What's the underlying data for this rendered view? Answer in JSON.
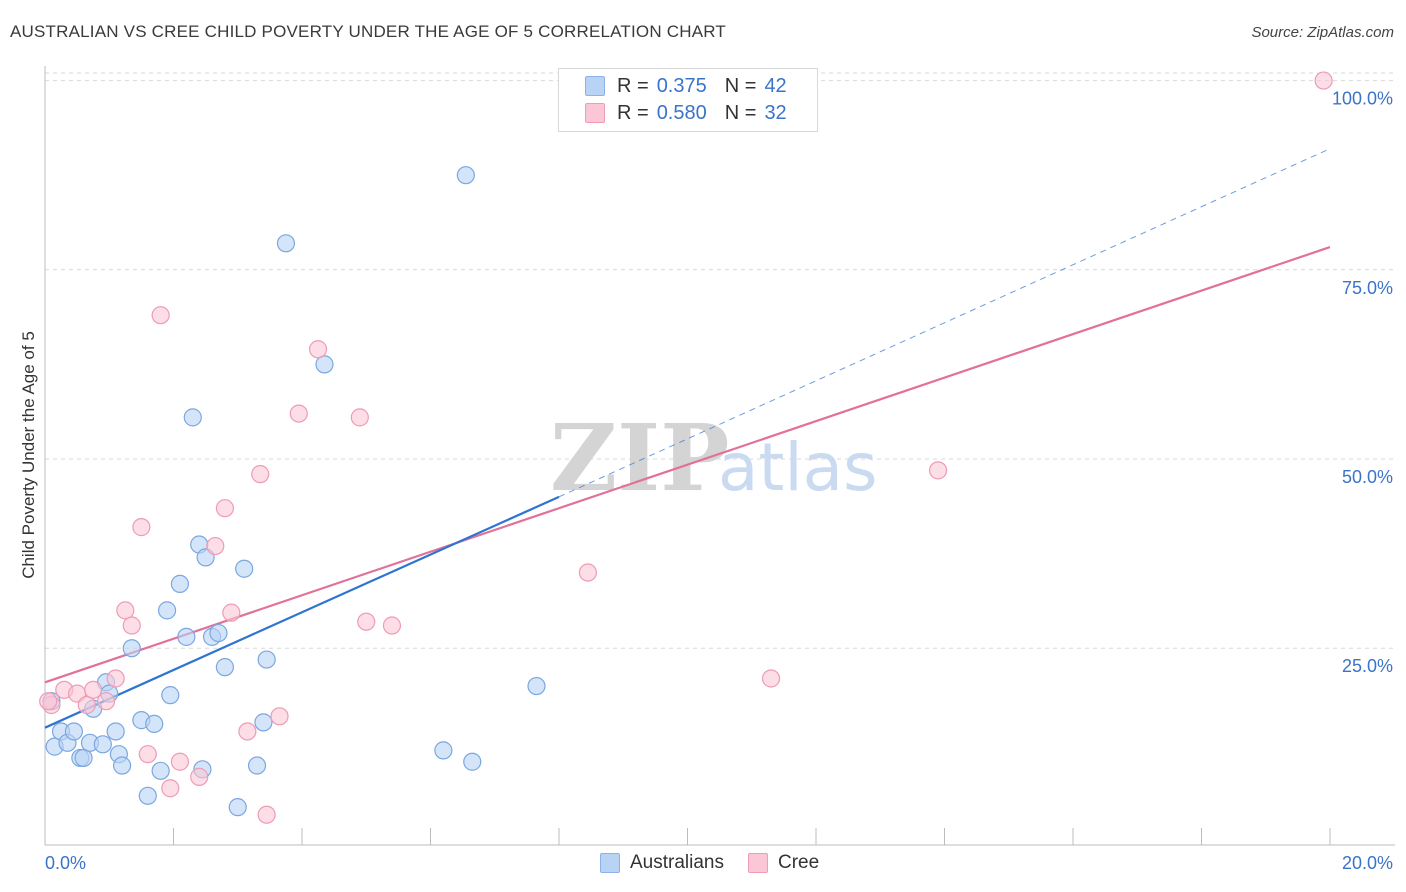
{
  "header": {
    "title": "AUSTRALIAN VS CREE CHILD POVERTY UNDER THE AGE OF 5 CORRELATION CHART",
    "source": "Source: ZipAtlas.com"
  },
  "legend": {
    "r_label": "R =",
    "n_label": "N =",
    "rows": [
      {
        "r": "0.375",
        "n": "42"
      },
      {
        "r": "0.580",
        "n": "32"
      }
    ]
  },
  "watermark": {
    "zip": "ZIP",
    "atlas": "atlas"
  },
  "colors": {
    "australians_fill": "#b9d3f5",
    "australians_stroke": "#7aa7e0",
    "australians_line": "#2e74d0",
    "cree_fill": "#fbc6d6",
    "cree_stroke": "#ee9bb6",
    "cree_line": "#e2719a",
    "tick_label": "#3a74c9",
    "grid": "#d9d9d9"
  },
  "chart_data": {
    "type": "scatter",
    "title": "AUSTRALIAN VS CREE CHILD POVERTY UNDER THE AGE OF 5 CORRELATION CHART",
    "xlabel": "",
    "ylabel": "Child Poverty Under the Age of 5",
    "xlim": [
      0,
      20
    ],
    "ylim": [
      -1,
      101
    ],
    "x_tick_labels": [
      "0.0%",
      "20.0%"
    ],
    "y_ticks": [
      25,
      50,
      75,
      100
    ],
    "y_tick_labels": [
      "25.0%",
      "50.0%",
      "75.0%",
      "100.0%"
    ],
    "grid": true,
    "legend_placement": "bottom",
    "series": [
      {
        "name": "Australians",
        "points": [
          [
            0.1,
            18.0
          ],
          [
            0.15,
            12.0
          ],
          [
            0.25,
            14.0
          ],
          [
            0.35,
            12.5
          ],
          [
            0.45,
            14.0
          ],
          [
            0.55,
            10.5
          ],
          [
            0.6,
            10.5
          ],
          [
            0.7,
            12.5
          ],
          [
            0.75,
            17.0
          ],
          [
            0.9,
            12.3
          ],
          [
            0.95,
            20.5
          ],
          [
            1.0,
            19.0
          ],
          [
            1.1,
            14.0
          ],
          [
            1.15,
            11.0
          ],
          [
            1.2,
            9.5
          ],
          [
            1.35,
            25.0
          ],
          [
            1.5,
            15.5
          ],
          [
            1.6,
            5.5
          ],
          [
            1.7,
            15.0
          ],
          [
            1.8,
            8.8
          ],
          [
            1.9,
            30.0
          ],
          [
            1.95,
            18.8
          ],
          [
            2.1,
            33.5
          ],
          [
            2.2,
            26.5
          ],
          [
            2.3,
            55.5
          ],
          [
            2.4,
            38.7
          ],
          [
            2.45,
            9.0
          ],
          [
            2.5,
            37.0
          ],
          [
            2.6,
            26.5
          ],
          [
            2.7,
            27.0
          ],
          [
            2.8,
            22.5
          ],
          [
            3.0,
            4.0
          ],
          [
            3.1,
            35.5
          ],
          [
            3.3,
            9.5
          ],
          [
            3.4,
            15.2
          ],
          [
            3.45,
            23.5
          ],
          [
            3.75,
            78.5
          ],
          [
            4.35,
            62.5
          ],
          [
            6.2,
            11.5
          ],
          [
            6.55,
            87.5
          ],
          [
            6.65,
            10.0
          ],
          [
            7.65,
            20.0
          ]
        ]
      },
      {
        "name": "Cree",
        "points": [
          [
            0.1,
            17.5
          ],
          [
            0.3,
            19.5
          ],
          [
            0.5,
            19.0
          ],
          [
            0.65,
            17.5
          ],
          [
            0.75,
            19.5
          ],
          [
            0.95,
            18.0
          ],
          [
            1.1,
            21.0
          ],
          [
            1.25,
            30.0
          ],
          [
            1.35,
            28.0
          ],
          [
            1.5,
            41.0
          ],
          [
            1.6,
            11.0
          ],
          [
            1.8,
            69.0
          ],
          [
            1.95,
            6.5
          ],
          [
            2.1,
            10.0
          ],
          [
            2.4,
            8.0
          ],
          [
            2.65,
            38.5
          ],
          [
            2.8,
            43.5
          ],
          [
            2.9,
            29.7
          ],
          [
            3.15,
            14.0
          ],
          [
            3.35,
            48.0
          ],
          [
            3.45,
            3.0
          ],
          [
            3.65,
            16.0
          ],
          [
            3.95,
            56.0
          ],
          [
            4.25,
            64.5
          ],
          [
            4.9,
            55.5
          ],
          [
            5.0,
            28.5
          ],
          [
            5.4,
            28.0
          ],
          [
            8.45,
            35.0
          ],
          [
            11.3,
            21.0
          ],
          [
            13.9,
            48.5
          ],
          [
            19.9,
            100.0
          ],
          [
            0.05,
            18.0
          ]
        ]
      }
    ],
    "trend_lines": [
      {
        "name": "Australians",
        "x0": 0.0,
        "y0": 14.5,
        "x1": 8.0,
        "y1": 45.0,
        "dashed_to_x": 20.0,
        "dashed_to_y": 91.0
      },
      {
        "name": "Cree",
        "x0": 0.0,
        "y0": 20.5,
        "x1": 20.0,
        "y1": 78.0
      }
    ]
  }
}
